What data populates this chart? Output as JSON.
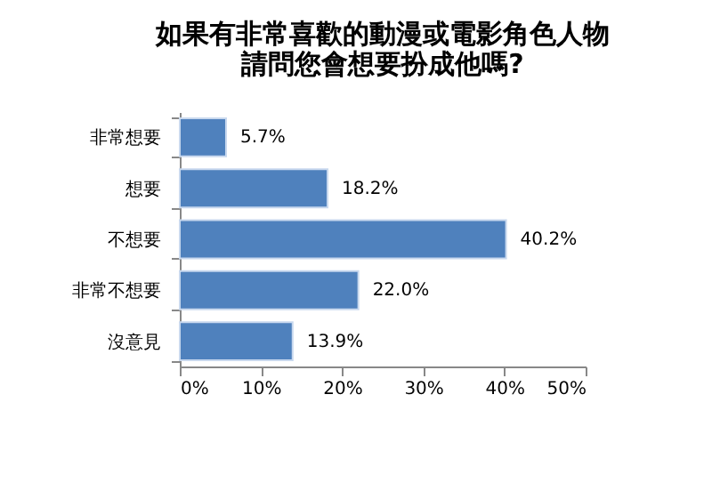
{
  "chart_data": {
    "type": "bar",
    "orientation": "horizontal",
    "title": "如果有非常喜歡的動漫或電影角色人物",
    "subtitle": "請問您會想要扮成他嗎?",
    "categories": [
      "非常想要",
      "想要",
      "不想要",
      "非常不想要",
      "沒意見"
    ],
    "values": [
      5.7,
      18.2,
      40.2,
      22.0,
      13.9
    ],
    "value_labels": [
      "5.7%",
      "18.2%",
      "40.2%",
      "22.0%",
      "13.9%"
    ],
    "color": "#4f81bd",
    "xlim": [
      0,
      50
    ],
    "xticks": [
      {
        "value": 0,
        "label": "0%"
      },
      {
        "value": 10,
        "label": "10%"
      },
      {
        "value": 20,
        "label": "20%"
      },
      {
        "value": 30,
        "label": "30%"
      },
      {
        "value": 40,
        "label": "40%"
      },
      {
        "value": 50,
        "label": "50%"
      }
    ],
    "grid": false
  }
}
